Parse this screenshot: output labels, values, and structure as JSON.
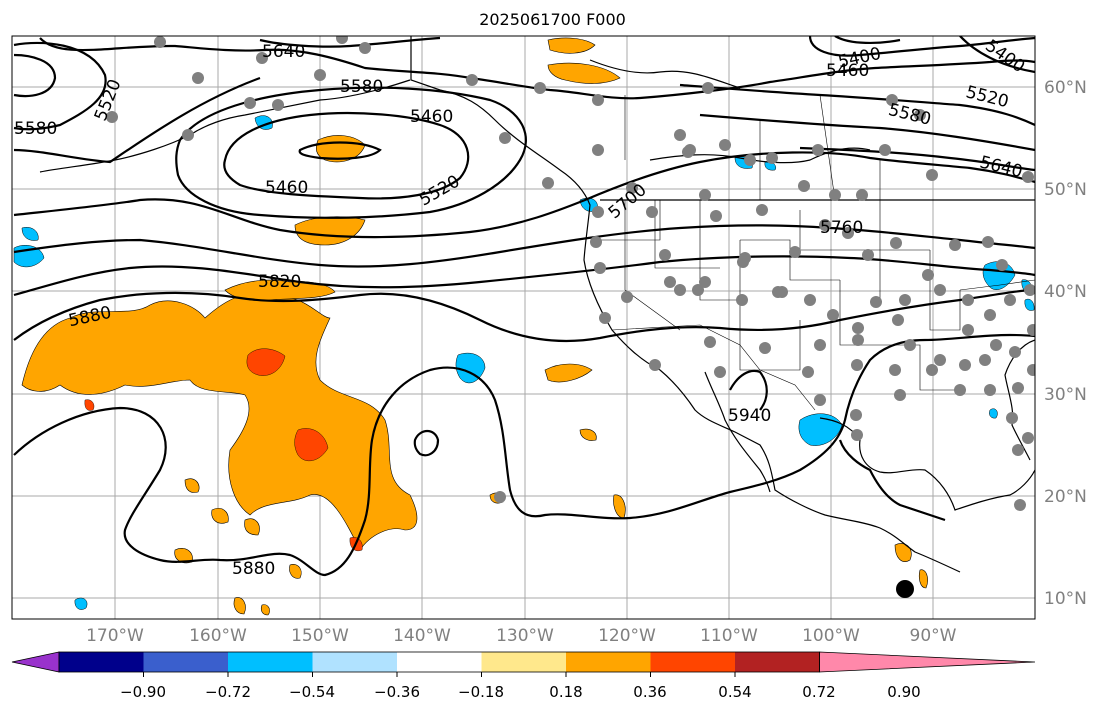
{
  "title": "2025061700 F000",
  "latitude_labels": [
    "60°N",
    "50°N",
    "40°N",
    "30°N",
    "20°N",
    "10°N"
  ],
  "longitude_labels": [
    "170°W",
    "160°W",
    "150°W",
    "140°W",
    "130°W",
    "120°W",
    "110°W",
    "100°W",
    "90°W"
  ],
  "contour_labels": [
    "5640",
    "5520",
    "5580",
    "5580",
    "5460",
    "5460",
    "5520",
    "5700",
    "5400",
    "5460",
    "5400",
    "5520",
    "5580",
    "5640",
    "5760",
    "5820",
    "5880",
    "5880",
    "5940"
  ],
  "colorbar": {
    "tick_labels": [
      "−0.90",
      "−0.72",
      "−0.54",
      "−0.36",
      "−0.18",
      "0.18",
      "0.36",
      "0.54",
      "0.72",
      "0.90"
    ],
    "colors": [
      "#9932cc",
      "#00008b",
      "#3a5fcd",
      "#00bfff",
      "#b0e2ff",
      "#ffffff",
      "#ffe88c",
      "#ffa500",
      "#ff4500",
      "#b22222",
      "#ff88aa"
    ]
  },
  "colors": {
    "positive_shade": "#ffa500",
    "strong_positive_shade": "#ff4500",
    "negative_shade": "#00bfff",
    "station_dot": "#808080",
    "contour": "#000000",
    "gridline": "#a9a9a9"
  }
}
